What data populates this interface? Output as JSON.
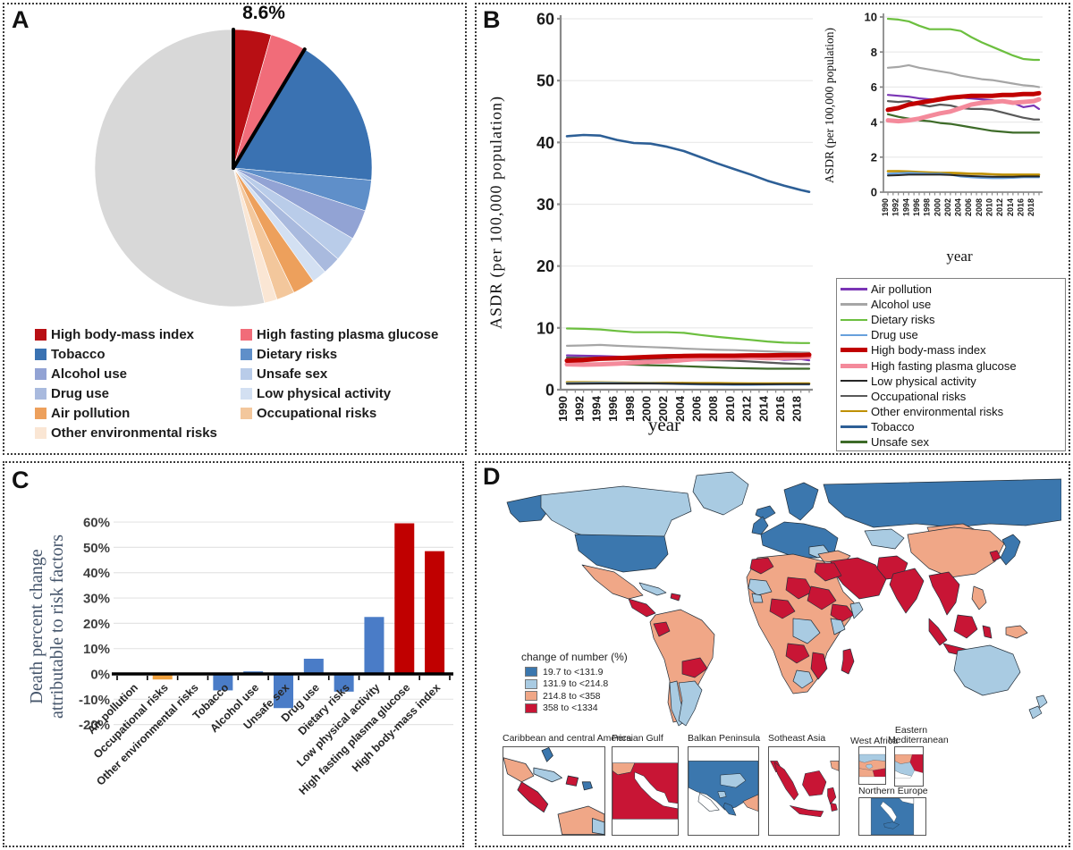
{
  "panels": {
    "a": "A",
    "b": "B",
    "c": "C",
    "d": "D"
  },
  "colors": {
    "bar_blue": "#4a7cc7",
    "bar_orange": "#f0a13e",
    "bar_red": "#c00000",
    "axis_gray": "#8a8a8a",
    "grid_gray": "#e9e9e9",
    "map_dark_blue": "#3b77ae",
    "map_light_blue": "#a9cbe2",
    "map_salmon": "#f0a787",
    "map_red": "#c81535"
  },
  "panel_a_legend": {
    "left": [
      {
        "label": "High body-mass index",
        "color": "#b80f14"
      },
      {
        "label": "Tobacco",
        "color": "#3a72b2"
      },
      {
        "label": "Alcohol use",
        "color": "#92a3d4"
      },
      {
        "label": "Drug use",
        "color": "#a9bade"
      },
      {
        "label": "Air pollution",
        "color": "#eda05c"
      },
      {
        "label": "Other environmental risks",
        "color": "#fae6d4"
      }
    ],
    "right": [
      {
        "label": "High fasting plasma glucose",
        "color": "#f16c79"
      },
      {
        "label": "Dietary risks",
        "color": "#5f8fc9"
      },
      {
        "label": "Unsafe sex",
        "color": "#b9cce9"
      },
      {
        "label": "Low physical activity",
        "color": "#d3e0f2"
      },
      {
        "label": "Occupational risks",
        "color": "#f3c79c"
      }
    ]
  },
  "chart_data": [
    {
      "id": "risk_attribution_pie",
      "type": "pie",
      "callout_label": "8.6%",
      "outlined_group": [
        "High body-mass index",
        "High fasting plasma glucose"
      ],
      "slices": [
        {
          "label": "High body-mass index",
          "value": 4.4,
          "color": "#b80f14"
        },
        {
          "label": "High fasting plasma glucose",
          "value": 4.2,
          "color": "#f16c79"
        },
        {
          "label": "Tobacco",
          "value": 17.8,
          "color": "#3a72b2"
        },
        {
          "label": "Dietary risks",
          "value": 3.6,
          "color": "#5f8fc9"
        },
        {
          "label": "Alcohol use",
          "value": 3.5,
          "color": "#92a3d4"
        },
        {
          "label": "Unsafe sex",
          "value": 2.9,
          "color": "#b9cce9"
        },
        {
          "label": "Drug use",
          "value": 2.1,
          "color": "#a9bade"
        },
        {
          "label": "Low physical activity",
          "value": 1.7,
          "color": "#d3e0f2"
        },
        {
          "label": "Air pollution",
          "value": 2.6,
          "color": "#eda05c"
        },
        {
          "label": "Occupational risks",
          "value": 2.1,
          "color": "#f3c79c"
        },
        {
          "label": "Other environmental risks",
          "value": 1.5,
          "color": "#fae6d4"
        },
        {
          "label": "Remainder",
          "value": 53.6,
          "color": "#d8d8d8"
        }
      ]
    },
    {
      "id": "asdr_trends",
      "type": "line",
      "xlabel": "year",
      "ylabel": "ASDR (per 100,000 population)",
      "x": [
        1990,
        1992,
        1994,
        1996,
        1998,
        2000,
        2002,
        2004,
        2006,
        2008,
        2010,
        2012,
        2014,
        2016,
        2018,
        2019
      ],
      "xticks": [
        1990,
        1992,
        1994,
        1996,
        1998,
        2000,
        2002,
        2004,
        2006,
        2008,
        2010,
        2012,
        2014,
        2016,
        2018
      ],
      "main_ylim": [
        0,
        60
      ],
      "main_yticks": [
        0,
        10,
        20,
        30,
        40,
        50,
        60
      ],
      "inset_ylim": [
        0,
        10
      ],
      "inset_yticks": [
        0,
        2,
        4,
        6,
        8,
        10
      ],
      "series": [
        {
          "name": "Dietary risks",
          "color": "#6cbf3f",
          "width": 2.2,
          "in_inset": true,
          "values": [
            9.9,
            9.85,
            9.75,
            9.5,
            9.3,
            9.3,
            9.3,
            9.2,
            8.85,
            8.55,
            8.3,
            8.05,
            7.8,
            7.6,
            7.55,
            7.55
          ]
        },
        {
          "name": "Alcohol use",
          "color": "#a6a6a6",
          "width": 2.2,
          "in_inset": true,
          "values": [
            7.1,
            7.15,
            7.25,
            7.1,
            7.0,
            6.9,
            6.8,
            6.65,
            6.55,
            6.45,
            6.4,
            6.3,
            6.2,
            6.1,
            6.05,
            6.0
          ]
        },
        {
          "name": "Air pollution",
          "color": "#7a35b5",
          "width": 2.2,
          "in_inset": true,
          "values": [
            5.55,
            5.5,
            5.45,
            5.35,
            5.3,
            5.3,
            5.35,
            5.4,
            5.35,
            5.3,
            5.25,
            5.15,
            5.1,
            4.85,
            4.95,
            4.75
          ]
        },
        {
          "name": "Occupational risks",
          "color": "#595959",
          "width": 2.2,
          "in_inset": true,
          "values": [
            5.2,
            5.15,
            5.2,
            5.0,
            4.9,
            5.0,
            4.95,
            4.8,
            4.75,
            4.75,
            4.7,
            4.55,
            4.4,
            4.25,
            4.15,
            4.15
          ]
        },
        {
          "name": "Unsafe sex",
          "color": "#3d6b28",
          "width": 2.2,
          "in_inset": true,
          "values": [
            4.45,
            4.3,
            4.2,
            4.1,
            4.05,
            3.95,
            3.9,
            3.8,
            3.7,
            3.6,
            3.5,
            3.45,
            3.4,
            3.4,
            3.4,
            3.4
          ]
        },
        {
          "name": "Other environmental risks",
          "color": "#bf9000",
          "width": 2.6,
          "in_inset": true,
          "values": [
            1.2,
            1.2,
            1.18,
            1.15,
            1.12,
            1.1,
            1.1,
            1.08,
            1.05,
            1.05,
            1.02,
            1.0,
            1.0,
            1.0,
            1.0,
            1.0
          ]
        },
        {
          "name": "Drug use",
          "color": "#67a0dc",
          "width": 2.2,
          "in_inset": true,
          "values": [
            1.05,
            1.08,
            1.1,
            1.08,
            1.05,
            1.05,
            1.0,
            0.9,
            0.85,
            0.82,
            0.8,
            0.8,
            0.82,
            0.85,
            0.85,
            0.85
          ]
        },
        {
          "name": "Low physical activity",
          "color": "#262626",
          "width": 2.0,
          "in_inset": true,
          "values": [
            0.95,
            0.97,
            1.0,
            1.0,
            1.0,
            1.0,
            0.98,
            0.95,
            0.92,
            0.9,
            0.88,
            0.88,
            0.88,
            0.9,
            0.9,
            0.9
          ]
        },
        {
          "name": "Tobacco",
          "color": "#2d5f96",
          "width": 2.6,
          "in_inset": false,
          "values": [
            41.0,
            41.2,
            41.1,
            40.4,
            39.9,
            39.8,
            39.3,
            38.6,
            37.6,
            36.6,
            35.7,
            34.8,
            33.8,
            33.0,
            32.3,
            32.0
          ]
        },
        {
          "name": "High fasting plasma glucose",
          "color": "#f48a9b",
          "width": 5.0,
          "in_inset": true,
          "values": [
            4.1,
            4.05,
            4.1,
            4.2,
            4.35,
            4.5,
            4.6,
            4.8,
            5.0,
            5.1,
            5.15,
            5.2,
            5.1,
            5.15,
            5.2,
            5.3
          ]
        },
        {
          "name": "High body-mass index",
          "color": "#c00000",
          "width": 5.0,
          "in_inset": true,
          "values": [
            4.7,
            4.8,
            5.0,
            5.1,
            5.2,
            5.3,
            5.4,
            5.45,
            5.5,
            5.5,
            5.5,
            5.55,
            5.55,
            5.6,
            5.6,
            5.65
          ]
        }
      ],
      "legend": [
        {
          "name": "Air pollution",
          "color": "#7a35b5",
          "thick": false
        },
        {
          "name": "Alcohol use",
          "color": "#a6a6a6",
          "thick": false
        },
        {
          "name": "Dietary risks",
          "color": "#6cbf3f",
          "thick": false
        },
        {
          "name": "Drug use",
          "color": "#67a0dc",
          "thick": false
        },
        {
          "name": "High body-mass index",
          "color": "#c00000",
          "thick": true
        },
        {
          "name": "High fasting plasma glucose",
          "color": "#f48a9b",
          "thick": true
        },
        {
          "name": "Low physical activity",
          "color": "#262626",
          "thick": false
        },
        {
          "name": "Occupational risks",
          "color": "#595959",
          "thick": false
        },
        {
          "name": "Other environmental risks",
          "color": "#bf9000",
          "thick": false
        },
        {
          "name": "Tobacco",
          "color": "#2d5f96",
          "thick": false
        },
        {
          "name": "Unsafe sex",
          "color": "#3d6b28",
          "thick": false
        }
      ]
    },
    {
      "id": "death_percent_change",
      "type": "bar",
      "ylabel": "Death percent change attributable to risk factors",
      "ylabel_lines": [
        "Death percent change",
        "attributable to risk factors"
      ],
      "categories": [
        "Air pollution",
        "Occupational risks",
        "Other environmental risks",
        "Tobacco",
        "Alcohol use",
        "Unsafe sex",
        "Drug use",
        "Dietary risks",
        "Low physical activity",
        "High fasting plasma glucose",
        "High body-mass index"
      ],
      "values": [
        -0.3,
        -2.2,
        0.3,
        -6.5,
        1.0,
        -13.5,
        6.0,
        -7.0,
        22.5,
        59.5,
        48.5
      ],
      "colors": [
        "#4a7cc7",
        "#f0a13e",
        "#4a7cc7",
        "#4a7cc7",
        "#4a7cc7",
        "#4a7cc7",
        "#4a7cc7",
        "#4a7cc7",
        "#4a7cc7",
        "#c00000",
        "#c00000"
      ],
      "yticks": [
        60,
        50,
        40,
        30,
        20,
        10,
        0,
        -10,
        -20
      ],
      "ytick_suffix": "%",
      "ylim": [
        -20,
        60
      ]
    },
    {
      "id": "change_of_number_map",
      "type": "choropleth",
      "legend_title": "change of number (%)",
      "classes": [
        {
          "label": "19.7 to <131.9",
          "color": "#3b77ae"
        },
        {
          "label": "131.9 to <214.8",
          "color": "#a9cbe2"
        },
        {
          "label": "214.8 to <358",
          "color": "#f0a787"
        },
        {
          "label": "358 to <1334",
          "color": "#c81535"
        }
      ],
      "insets": [
        "Caribbean and central  America",
        "Persian Gulf",
        "Balkan Peninsula",
        "Sotheast Asia",
        "West Africa",
        "Eastern Mediterranean",
        "Northern Europe"
      ]
    }
  ]
}
